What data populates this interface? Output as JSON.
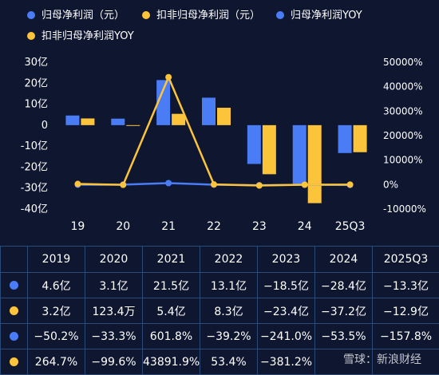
{
  "chart_data": {
    "type": "bar",
    "categories": [
      "19",
      "20",
      "21",
      "22",
      "23",
      "24",
      "25Q3"
    ],
    "series": [
      {
        "name": "归母净利润（元）",
        "type": "bar",
        "axis": "left",
        "color": "#4a7cf6",
        "values": [
          4.6,
          3.1,
          21.5,
          13.1,
          -18.5,
          -28.4,
          -13.3
        ]
      },
      {
        "name": "扣非归母净利润（元）",
        "type": "bar",
        "axis": "left",
        "color": "#fcc43a",
        "values": [
          3.2,
          0.01234,
          5.4,
          8.3,
          -23.4,
          -37.2,
          -12.9
        ]
      },
      {
        "name": "归母净利润YOY",
        "type": "line",
        "axis": "right",
        "color": "#4a7cf6",
        "values": [
          -50.2,
          -33.3,
          601.8,
          -39.2,
          -241.0,
          -53.5,
          -157.8
        ]
      },
      {
        "name": "扣非归母净利润YOY",
        "type": "line",
        "axis": "right",
        "color": "#fcc43a",
        "values": [
          264.7,
          -99.6,
          43891.9,
          53.4,
          -381.2,
          -59.0,
          1.6
        ]
      }
    ],
    "left_axis": {
      "ticks": [
        "30亿",
        "20亿",
        "10亿",
        "0",
        "-10亿",
        "-20亿",
        "-30亿",
        "-40亿"
      ],
      "range": [
        -40,
        30
      ]
    },
    "right_axis": {
      "ticks": [
        "50000%",
        "40000%",
        "30000%",
        "20000%",
        "10000%",
        "0%",
        "-10000%"
      ],
      "range": [
        -10000,
        50000
      ]
    },
    "legend_placement": "top"
  },
  "table": {
    "headers": [
      "",
      "2019",
      "2020",
      "2021",
      "2022",
      "2023",
      "2024",
      "2025Q3"
    ],
    "rows": [
      {
        "marker": "#4a7cf6",
        "cells": [
          "4.6亿",
          "3.1亿",
          "21.5亿",
          "13.1亿",
          "−18.5亿",
          "−28.4亿",
          "−13.3亿"
        ]
      },
      {
        "marker": "#fcc43a",
        "cells": [
          "3.2亿",
          "123.4万",
          "5.4亿",
          "8.3亿",
          "−23.4亿",
          "−37.2亿",
          "−12.9亿"
        ]
      },
      {
        "marker": "#4a7cf6",
        "cells": [
          "−50.2%",
          "−33.3%",
          "601.8%",
          "−39.2%",
          "−241.0%",
          "−53.5%",
          "−157.8%"
        ]
      },
      {
        "marker": "#fcc43a",
        "cells": [
          "264.7%",
          "−99.6%",
          "43891.9%",
          "53.4%",
          "−381.2%",
          "",
          ""
        ]
      }
    ]
  },
  "watermark": "雪球：新浪财经"
}
